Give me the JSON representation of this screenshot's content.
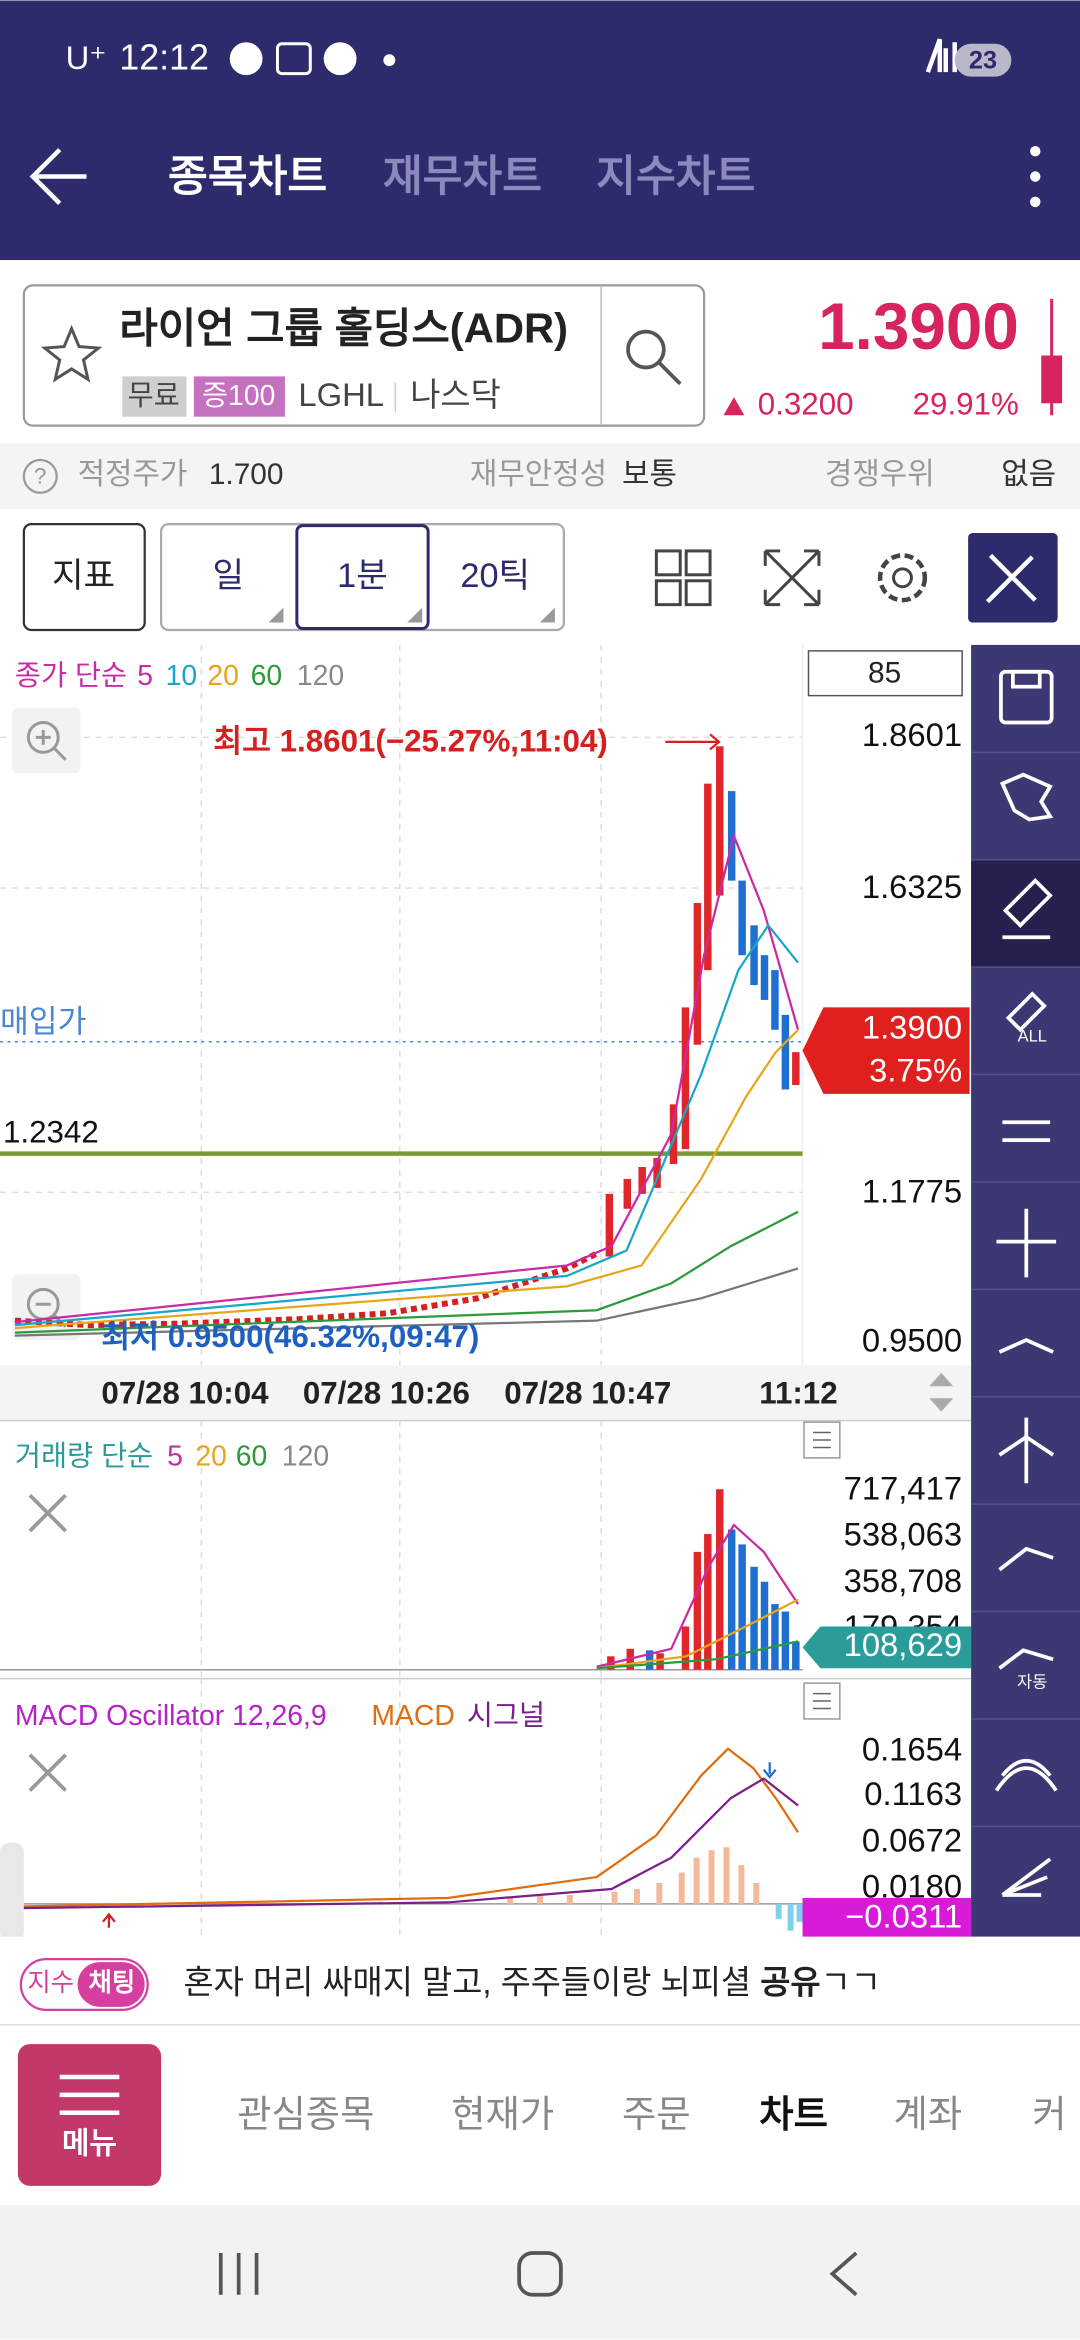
{
  "status_bar": {
    "carrier": "U⁺",
    "time": "12:12",
    "battery": 23
  },
  "tabs": [
    "종목차트",
    "재무차트",
    "지수차트"
  ],
  "stock": {
    "name": "라이언 그룹 홀딩스(ADR)",
    "badges": [
      "무료",
      "증100"
    ],
    "ticker": "LGHL",
    "market": "나스닥",
    "price": "1.3900",
    "change": "0.3200",
    "change_pct": "29.91%"
  },
  "info": {
    "fair_price_label": "적정주가",
    "fair_price": "1.700",
    "stability_label": "재무안정성",
    "stability": "보통",
    "competitive_label": "경쟁우위",
    "competitive": "없음"
  },
  "toolbar": {
    "indicator": "지표",
    "period": "일",
    "interval": "1분",
    "ticks": "20틱"
  },
  "price_chart": {
    "legend_label": "종가 단순",
    "ma": [
      5,
      10,
      20,
      60,
      120
    ],
    "count": 85,
    "high_note": "최고 1.8601(−25.27%,11:04)",
    "low_note": "최저 0.9500(46.32%,09:47)",
    "buy_label": "매입가",
    "line_label": "1.2342",
    "y_labels": [
      "1.8601",
      "1.6325",
      "1.1775",
      "0.9500"
    ],
    "current_price": "1.3900",
    "current_pct": "3.75%",
    "x_labels": [
      "07/28 10:04",
      "07/28 10:26",
      "07/28 10:47",
      "11:12"
    ]
  },
  "volume_chart": {
    "legend_label": "거래량 단순",
    "ma": [
      5,
      20,
      60,
      120
    ],
    "y_labels": [
      "717,417",
      "538,063",
      "358,708",
      "179,354"
    ],
    "current": "108,629"
  },
  "macd_chart": {
    "legend": "MACD Oscillator 12,26,9",
    "macd": "MACD",
    "signal": "시그널",
    "y_labels": [
      "0.1654",
      "0.1163",
      "0.0672",
      "0.0180"
    ],
    "current": "−0.0311"
  },
  "side_tools": {
    "all": "ALL",
    "auto": "자동"
  },
  "chat": {
    "badge_index": "지수",
    "badge_chat": "채팅",
    "message": "혼자 머리 싸매지 말고, 주주들이랑 뇌피셜 ",
    "message_bold": "공유",
    "message_end": "ㄱㄱ"
  },
  "nav": {
    "menu": "메뉴",
    "items": [
      "관심종목",
      "현재가",
      "주문",
      "차트",
      "계좌",
      "커"
    ]
  }
}
